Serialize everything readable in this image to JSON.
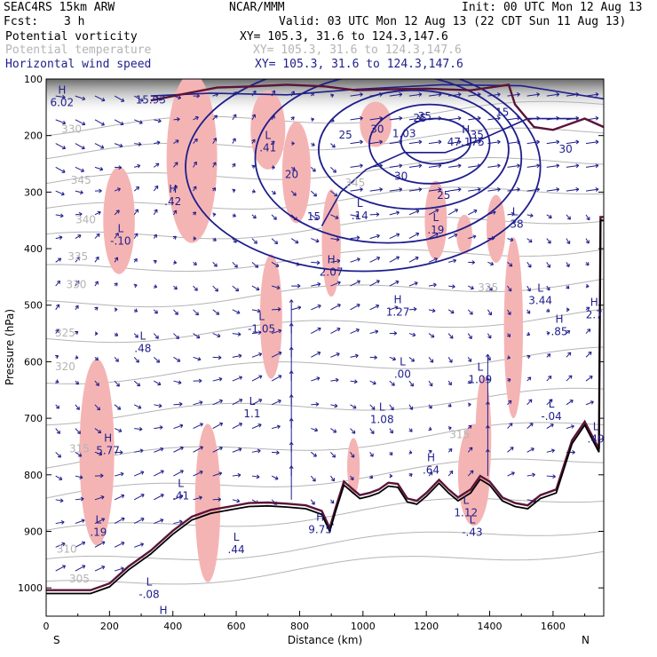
{
  "header": {
    "model": "SEAC4RS 15km ARW",
    "org": "NCAR/MMM",
    "init": "Init: 00 UTC Mon 12 Aug 13",
    "fcst_label": "Fcst:",
    "fcst_value": "3 h",
    "valid": "Valid: 03 UTC Mon 12 Aug 13 (22 CDT Sun 11 Aug 13)",
    "fields": [
      {
        "name": "Potential vorticity",
        "range": "XY= 105.3, 31.6 to 124.3,147.6",
        "color": "#000000"
      },
      {
        "name": "Potential temperature",
        "range": "XY= 105.3, 31.6 to 124.3,147.6",
        "color": "#b4b4b4"
      },
      {
        "name": "Horizontal wind speed",
        "range": "XY= 105.3, 31.6 to 124.3,147.6",
        "color": "#1e1e8c"
      }
    ]
  },
  "colors": {
    "pv_shade": "#f5b4b4",
    "pv_contour": "#5a1438",
    "theta": "#b4b4b4",
    "wind_contour": "#1e1e8c",
    "wind_vector": "#1e1e8c",
    "terrain": "#000000"
  },
  "chart_data": {
    "type": "cross-section",
    "xlabel": "Distance (km)",
    "ylabel": "Pressure (hPa)",
    "xlim": [
      0,
      1760
    ],
    "ylim": [
      1050,
      100
    ],
    "x_ticks": [
      "0",
      "200",
      "400",
      "600",
      "800",
      "1000",
      "1200",
      "1400",
      "1600"
    ],
    "y_ticks": [
      "100",
      "200",
      "300",
      "400",
      "500",
      "600",
      "700",
      "800",
      "900",
      "1000"
    ],
    "x_end_labels": {
      "left": "S",
      "right": "N"
    },
    "terrain": [
      [
        0,
        1010
      ],
      [
        140,
        1010
      ],
      [
        200,
        998
      ],
      [
        260,
        968
      ],
      [
        330,
        940
      ],
      [
        400,
        905
      ],
      [
        460,
        880
      ],
      [
        520,
        868
      ],
      [
        580,
        862
      ],
      [
        640,
        856
      ],
      [
        700,
        855
      ],
      [
        760,
        857
      ],
      [
        820,
        860
      ],
      [
        870,
        870
      ],
      [
        895,
        900
      ],
      [
        915,
        862
      ],
      [
        940,
        818
      ],
      [
        965,
        830
      ],
      [
        990,
        842
      ],
      [
        1020,
        838
      ],
      [
        1050,
        832
      ],
      [
        1080,
        820
      ],
      [
        1110,
        822
      ],
      [
        1140,
        848
      ],
      [
        1170,
        852
      ],
      [
        1200,
        838
      ],
      [
        1240,
        815
      ],
      [
        1270,
        832
      ],
      [
        1300,
        846
      ],
      [
        1340,
        832
      ],
      [
        1370,
        808
      ],
      [
        1400,
        818
      ],
      [
        1440,
        846
      ],
      [
        1480,
        856
      ],
      [
        1520,
        860
      ],
      [
        1560,
        842
      ],
      [
        1610,
        832
      ],
      [
        1660,
        745
      ],
      [
        1700,
        712
      ],
      [
        1745,
        760
      ],
      [
        1750,
        350
      ],
      [
        1760,
        350
      ]
    ],
    "theta_labels": [
      {
        "text": "330",
        "x": 80,
        "p": 195
      },
      {
        "text": "345",
        "x": 110,
        "p": 285
      },
      {
        "text": "340",
        "x": 125,
        "p": 355
      },
      {
        "text": "335",
        "x": 100,
        "p": 420
      },
      {
        "text": "330",
        "x": 95,
        "p": 470
      },
      {
        "text": "325",
        "x": 60,
        "p": 555
      },
      {
        "text": "320",
        "x": 60,
        "p": 615
      },
      {
        "text": "315",
        "x": 105,
        "p": 760
      },
      {
        "text": "310",
        "x": 65,
        "p": 938
      },
      {
        "text": "305",
        "x": 105,
        "p": 990
      },
      {
        "text": "345",
        "x": 975,
        "p": 290
      },
      {
        "text": "325",
        "x": 1395,
        "p": 475
      },
      {
        "text": "315",
        "x": 1305,
        "p": 735
      }
    ],
    "wind_labels": [
      {
        "text": "35",
        "x": 1195,
        "p": 172
      },
      {
        "text": "30",
        "x": 1045,
        "p": 195
      },
      {
        "text": "25",
        "x": 945,
        "p": 205
      },
      {
        "text": "35",
        "x": 1360,
        "p": 205
      },
      {
        "text": "30",
        "x": 1640,
        "p": 230
      },
      {
        "text": "20",
        "x": 775,
        "p": 275
      },
      {
        "text": "30",
        "x": 1120,
        "p": 278
      },
      {
        "text": "25",
        "x": 1255,
        "p": 312
      },
      {
        "text": "15",
        "x": 845,
        "p": 350
      },
      {
        "text": "25",
        "x": 1180,
        "p": 175
      },
      {
        "text": "15",
        "x": 1440,
        "p": 165
      }
    ],
    "extrema": [
      {
        "type": "H",
        "value": "6.02",
        "x": 50,
        "p": 145
      },
      {
        "type": "",
        "value": "15.93",
        "x": 330,
        "p": 140
      },
      {
        "type": "H",
        "value": ".42",
        "x": 400,
        "p": 320
      },
      {
        "type": "L",
        "value": "-.10",
        "x": 235,
        "p": 390
      },
      {
        "type": "L",
        "value": ".41",
        "x": 700,
        "p": 225
      },
      {
        "type": "H",
        "value": "47.175",
        "x": 1325,
        "p": 215
      },
      {
        "type": "",
        "value": "1.03",
        "x": 1130,
        "p": 200
      },
      {
        "type": "L",
        "value": ".14",
        "x": 990,
        "p": 345
      },
      {
        "type": "L",
        "value": ".19",
        "x": 1230,
        "p": 370
      },
      {
        "type": "L",
        "value": ".38",
        "x": 1480,
        "p": 360
      },
      {
        "type": "H",
        "value": "2.07",
        "x": 900,
        "p": 445
      },
      {
        "type": "H",
        "value": "1.27",
        "x": 1110,
        "p": 515
      },
      {
        "type": "L",
        "value": "3.44",
        "x": 1560,
        "p": 495
      },
      {
        "type": "H",
        "value": ".85",
        "x": 1620,
        "p": 550
      },
      {
        "type": "H",
        "value": "2.7",
        "x": 1730,
        "p": 520
      },
      {
        "type": "L",
        "value": "-1.05",
        "x": 680,
        "p": 545
      },
      {
        "type": "L",
        "value": ".48",
        "x": 305,
        "p": 580
      },
      {
        "type": "L",
        "value": ".00",
        "x": 1125,
        "p": 625
      },
      {
        "type": "L",
        "value": "1.09",
        "x": 1370,
        "p": 635
      },
      {
        "type": "L",
        "value": "1.1",
        "x": 650,
        "p": 695
      },
      {
        "type": "L",
        "value": "1.08",
        "x": 1060,
        "p": 705
      },
      {
        "type": "L",
        "value": "-.04",
        "x": 1595,
        "p": 700
      },
      {
        "type": "L",
        "value": ".49",
        "x": 1735,
        "p": 740
      },
      {
        "type": "H",
        "value": "5.77",
        "x": 195,
        "p": 760
      },
      {
        "type": "H",
        "value": ".64",
        "x": 1215,
        "p": 795
      },
      {
        "type": "L",
        "value": ".41",
        "x": 425,
        "p": 840
      },
      {
        "type": "L",
        "value": "1.12",
        "x": 1325,
        "p": 870
      },
      {
        "type": "H",
        "value": "9.75",
        "x": 865,
        "p": 900
      },
      {
        "type": "L",
        "value": "-.43",
        "x": 1345,
        "p": 905
      },
      {
        "type": "L",
        "value": ".19",
        "x": 165,
        "p": 905
      },
      {
        "type": "L",
        "value": ".44",
        "x": 600,
        "p": 935
      },
      {
        "type": "L",
        "value": "-.08",
        "x": 325,
        "p": 1015
      },
      {
        "type": "H",
        "value": "13.16",
        "x": 370,
        "p": 1065
      }
    ]
  }
}
